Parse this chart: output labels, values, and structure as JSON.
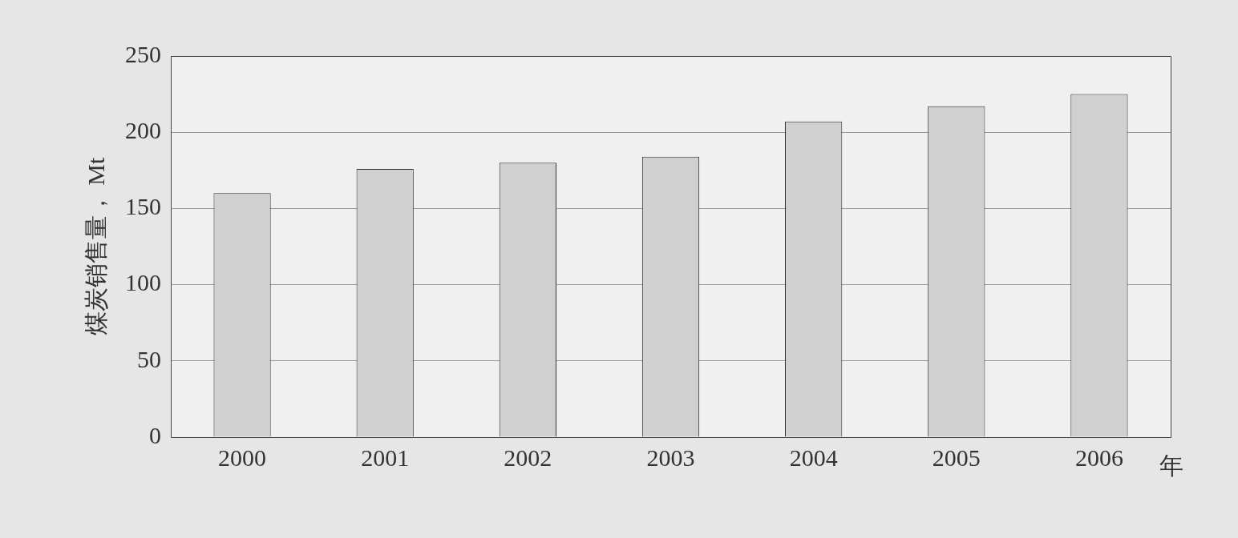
{
  "chart_data": {
    "type": "bar",
    "categories": [
      "2000",
      "2001",
      "2002",
      "2003",
      "2004",
      "2005",
      "2006"
    ],
    "values": [
      160,
      176,
      180,
      184,
      207,
      217,
      225
    ],
    "color": "#d0d0d0",
    "ylim": [
      0,
      250
    ],
    "yticks": [
      0,
      50,
      100,
      150,
      200,
      250
    ],
    "grid": "y",
    "xlabel": "年",
    "ylabel": "煤炭销售量， Mt"
  }
}
